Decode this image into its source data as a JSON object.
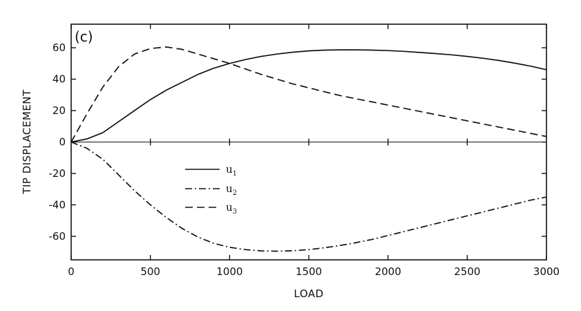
{
  "chart_data": {
    "type": "line",
    "panel_label": "(c)",
    "title": "",
    "xlabel": "LOAD",
    "ylabel": "TIP DISPLACEMENT",
    "xlim": [
      0,
      3000
    ],
    "ylim": [
      -75,
      75
    ],
    "xticks": [
      0,
      500,
      1000,
      1500,
      2000,
      2500,
      3000
    ],
    "yticks": [
      -60,
      -40,
      -20,
      0,
      20,
      40,
      60
    ],
    "grid": false,
    "legend_position": "center-left",
    "series": [
      {
        "name": "u1",
        "label_main": "u",
        "label_sub": "1",
        "style": "solid",
        "x": [
          0,
          100,
          200,
          300,
          400,
          500,
          600,
          700,
          800,
          900,
          1000,
          1100,
          1200,
          1300,
          1400,
          1500,
          1600,
          1700,
          1800,
          1900,
          2000,
          2100,
          2200,
          2300,
          2400,
          2500,
          2600,
          2700,
          2800,
          2900,
          3000
        ],
        "y": [
          0,
          2,
          6,
          13,
          20,
          27,
          33,
          38,
          43,
          47,
          50,
          52.5,
          54.5,
          56,
          57.2,
          58,
          58.5,
          58.7,
          58.7,
          58.5,
          58.2,
          57.7,
          57,
          56.3,
          55.5,
          54.5,
          53.3,
          51.9,
          50.2,
          48.3,
          46
        ]
      },
      {
        "name": "u2",
        "label_main": "u",
        "label_sub": "2",
        "style": "dashdot",
        "x": [
          0,
          100,
          200,
          300,
          400,
          500,
          600,
          700,
          800,
          900,
          1000,
          1100,
          1200,
          1300,
          1400,
          1500,
          1600,
          1700,
          1800,
          1900,
          2000,
          2100,
          2200,
          2300,
          2400,
          2500,
          2600,
          2700,
          2800,
          2900,
          3000
        ],
        "y": [
          0,
          -4,
          -11,
          -21,
          -31,
          -40,
          -48,
          -55,
          -60.5,
          -64.5,
          -67,
          -68.5,
          -69.3,
          -69.5,
          -69.2,
          -68.5,
          -67.3,
          -65.8,
          -64,
          -62,
          -59.5,
          -57,
          -54.5,
          -52,
          -49.5,
          -47,
          -44.5,
          -42,
          -39.5,
          -37,
          -35
        ]
      },
      {
        "name": "u3",
        "label_main": "u",
        "label_sub": "3",
        "style": "dashed",
        "x": [
          0,
          100,
          200,
          300,
          400,
          500,
          600,
          700,
          800,
          900,
          1000,
          1100,
          1200,
          1300,
          1400,
          1500,
          1600,
          1700,
          1800,
          1900,
          2000,
          2100,
          2200,
          2300,
          2400,
          2500,
          2600,
          2700,
          2800,
          2900,
          3000
        ],
        "y": [
          0,
          18,
          35,
          48,
          56,
          59.5,
          60.5,
          59,
          56,
          53,
          50,
          46.5,
          43,
          40,
          37,
          34.5,
          32,
          29.5,
          27.5,
          25.5,
          23.5,
          21.5,
          19.5,
          17.5,
          15.5,
          13.5,
          11.5,
          9.5,
          7.5,
          5.5,
          3.5
        ]
      }
    ]
  }
}
